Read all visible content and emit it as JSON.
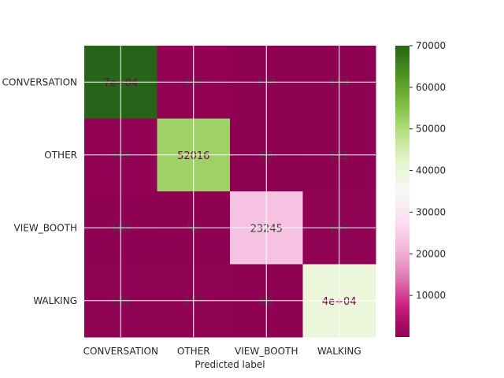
{
  "chart_data": {
    "type": "heatmap",
    "title": "",
    "xlabel": "Predicted label",
    "ylabel": "",
    "x_categories": [
      "CONVERSATION",
      "OTHER",
      "VIEW_BOOTH",
      "WALKING"
    ],
    "y_categories": [
      "CONVERSATION",
      "OTHER",
      "VIEW_BOOTH",
      "WALKING"
    ],
    "values": [
      [
        70000,
        337,
        177,
        154
      ],
      [
        362,
        52016,
        63,
        121
      ],
      [
        180,
        56,
        23245,
        227
      ],
      [
        249,
        273,
        88,
        40000
      ]
    ],
    "cell_labels": [
      [
        "7e+04",
        "337",
        "177",
        "154"
      ],
      [
        "362",
        "52016",
        "63",
        "121"
      ],
      [
        "180",
        "56",
        "23245",
        "227"
      ],
      [
        "249",
        "273",
        "88",
        "4e+04"
      ]
    ],
    "colorbar": {
      "colormap": "PiYG",
      "vmin": 0,
      "vmax": 70000,
      "ticks": [
        10000,
        20000,
        30000,
        40000,
        50000,
        60000,
        70000
      ],
      "tick_labels": [
        "10000",
        "20000",
        "30000",
        "40000",
        "50000",
        "60000",
        "70000"
      ]
    },
    "grid": true,
    "grid_color": "#ffffff"
  }
}
